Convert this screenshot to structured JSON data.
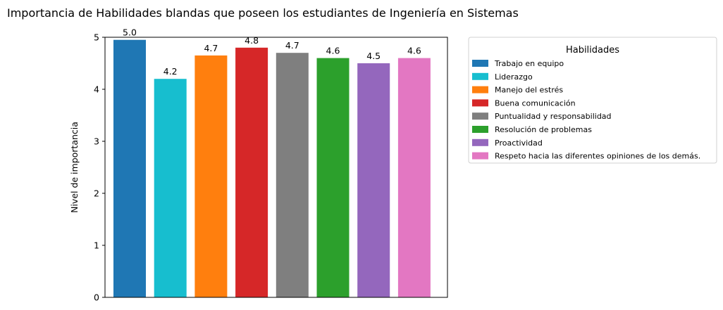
{
  "chart_data": {
    "type": "bar",
    "title": "Importancia de Habilidades blandas que poseen los estudiantes de Ingeniería en Sistemas",
    "xlabel": "",
    "ylabel": "Nivel de importancia",
    "ylim": [
      0,
      5
    ],
    "yticks": [
      "0",
      "1",
      "2",
      "3",
      "4",
      "5"
    ],
    "grid": false,
    "legend": {
      "title": "Habilidades",
      "placement": "outside-right"
    },
    "categories": [
      "Trabajo en equipo",
      "Liderazgo",
      "Manejo del estrés",
      "Buena comunicación",
      "Puntualidad y responsabilidad",
      "Resolución de problemas",
      "Proactividad",
      "Respeto hacia las diferentes opiniones de los demás."
    ],
    "values": [
      4.95,
      4.2,
      4.65,
      4.8,
      4.7,
      4.6,
      4.5,
      4.6
    ],
    "data_labels": [
      "5.0",
      "4.2",
      "4.7",
      "4.8",
      "4.7",
      "4.6",
      "4.5",
      "4.6"
    ],
    "colors": [
      "#1f77b4",
      "#17becf",
      "#ff7f0e",
      "#d62728",
      "#7f7f7f",
      "#2ca02c",
      "#9467bd",
      "#e377c2"
    ]
  }
}
